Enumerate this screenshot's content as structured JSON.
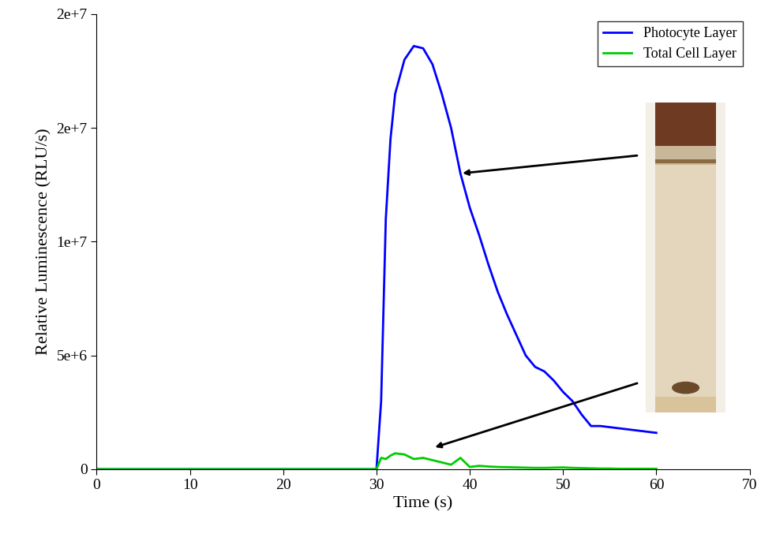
{
  "chart_data": {
    "type": "line",
    "x_label": "Time (s)",
    "y_label": "Relative Luminescence (RLU/s)",
    "x": [
      0,
      10,
      20,
      29,
      30,
      30.5,
      31,
      31.5,
      32,
      33,
      34,
      35,
      36,
      37,
      38,
      39,
      40,
      41,
      42,
      43,
      44,
      45,
      46,
      47,
      48,
      49,
      50,
      51,
      52,
      53,
      54,
      55,
      56,
      57,
      58,
      59,
      60
    ],
    "series": [
      {
        "name": "Photocyte Layer",
        "color": "#0000ff",
        "values": [
          0,
          0,
          0,
          0,
          0,
          3000000,
          11000000,
          14500000,
          16500000,
          18000000,
          18600000,
          18500000,
          17800000,
          16500000,
          15000000,
          13000000,
          11500000,
          10300000,
          9000000,
          7800000,
          6800000,
          5900000,
          5000000,
          4500000,
          4300000,
          3900000,
          3400000,
          3000000,
          2400000,
          1900000,
          1900000,
          1850000,
          1800000,
          1750000,
          1700000,
          1650000,
          1600000
        ]
      },
      {
        "name": "Total Cell Layer",
        "color": "#00cc00",
        "values": [
          0,
          0,
          0,
          0,
          0,
          500000,
          450000,
          600000,
          700000,
          650000,
          450000,
          500000,
          400000,
          300000,
          200000,
          500000,
          100000,
          150000,
          120000,
          100000,
          90000,
          80000,
          70000,
          60000,
          60000,
          70000,
          80000,
          60000,
          50000,
          40000,
          30000,
          30000,
          20000,
          20000,
          20000,
          20000,
          20000
        ]
      }
    ],
    "xlim": [
      0,
      70
    ],
    "xticks": [
      0,
      10,
      20,
      30,
      40,
      50,
      60,
      70
    ],
    "ylim": [
      0,
      20000000
    ],
    "yticks": [
      0,
      {
        "value": 5000000,
        "label": "5e+6"
      },
      {
        "value": 10000000,
        "label": "1e+7"
      },
      {
        "value": 15000000,
        "label": "2e+7"
      },
      {
        "value": 20000000,
        "label": "2e+7"
      }
    ],
    "legend": "upper right",
    "grid": false
  }
}
